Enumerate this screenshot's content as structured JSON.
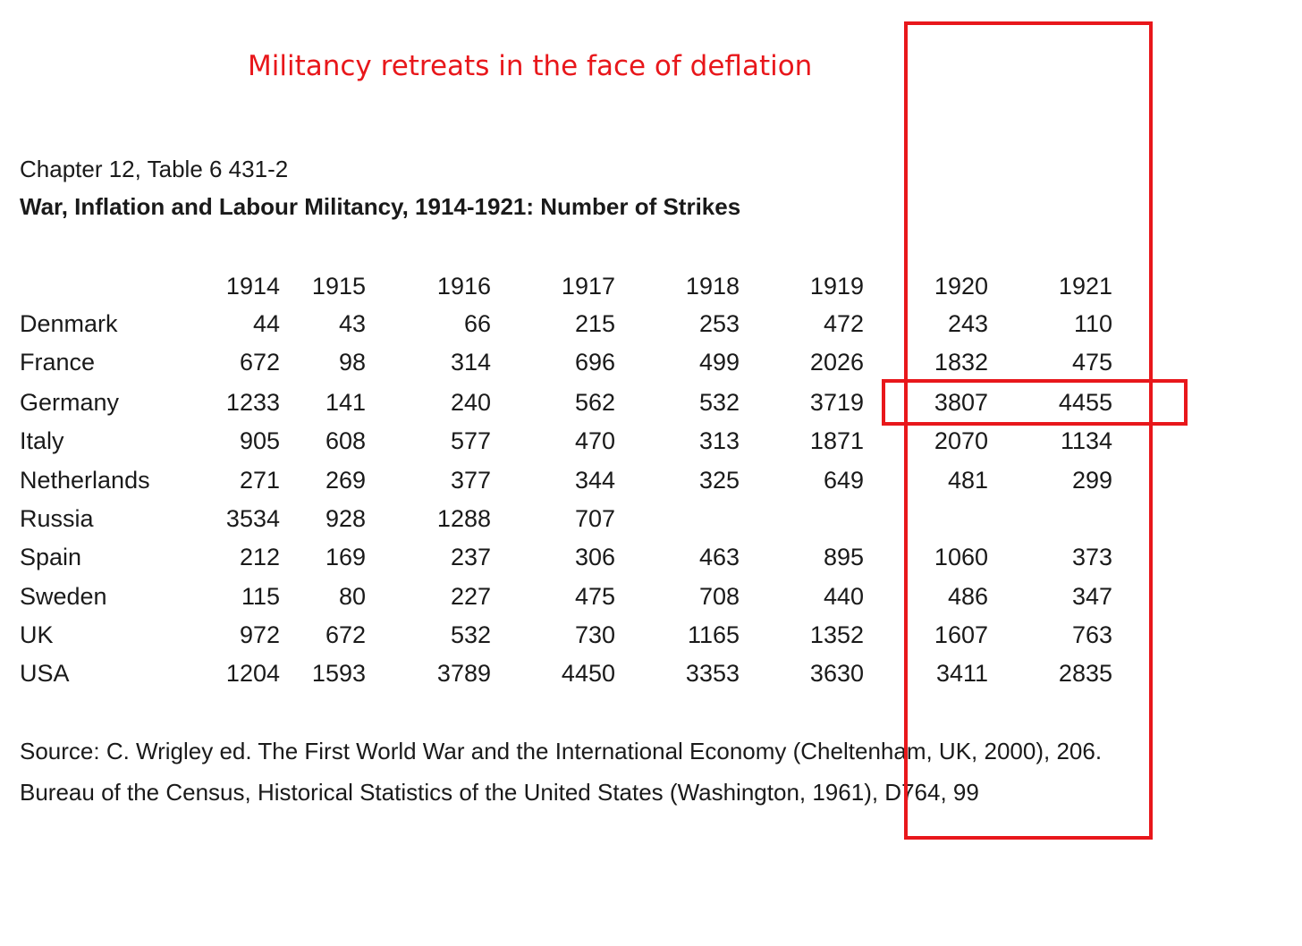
{
  "annotation": {
    "title": "Militancy retreats in the face of deflation",
    "color": "#e8171b"
  },
  "document": {
    "chapter": "Chapter 12, Table 6 431-2",
    "title": "War, Inflation and Labour Militancy, 1914-1921: Number of Strikes"
  },
  "table": {
    "years": [
      "1914",
      "1915",
      "1916",
      "1917",
      "1918",
      "1919",
      "1920",
      "1921"
    ],
    "rows": [
      {
        "country": "Denmark",
        "values": [
          "44",
          "43",
          "66",
          "215",
          "253",
          "472",
          "243",
          "110"
        ]
      },
      {
        "country": "France",
        "values": [
          "672",
          "98",
          "314",
          "696",
          "499",
          "2026",
          "1832",
          "475"
        ]
      },
      {
        "country": "Germany",
        "values": [
          "1233",
          "141",
          "240",
          "562",
          "532",
          "3719",
          "3807",
          "4455"
        ]
      },
      {
        "country": "Italy",
        "values": [
          "905",
          "608",
          "577",
          "470",
          "313",
          "1871",
          "2070",
          "1134"
        ]
      },
      {
        "country": "Netherlands",
        "values": [
          "271",
          "269",
          "377",
          "344",
          "325",
          "649",
          "481",
          "299"
        ]
      },
      {
        "country": "Russia",
        "values": [
          "3534",
          "928",
          "1288",
          "707",
          "",
          "",
          "",
          ""
        ]
      },
      {
        "country": "Spain",
        "values": [
          "212",
          "169",
          "237",
          "306",
          "463",
          "895",
          "1060",
          "373"
        ]
      },
      {
        "country": "Sweden",
        "values": [
          "115",
          "80",
          "227",
          "475",
          "708",
          "440",
          "486",
          "347"
        ]
      },
      {
        "country": "UK",
        "values": [
          "972",
          "672",
          "532",
          "730",
          "1165",
          "1352",
          "1607",
          "763"
        ]
      },
      {
        "country": "USA",
        "values": [
          "1204",
          "1593",
          "3789",
          "4450",
          "3353",
          "3630",
          "3411",
          "2835"
        ]
      }
    ]
  },
  "source": {
    "line1": "Source: C. Wrigley ed. The First World War and the International Economy (Cheltenham, UK, 2000), 206.",
    "line2": "Bureau of the Census, Historical Statistics of the United States (Washington, 1961), D764, 99"
  },
  "highlights": {
    "column": "1920-1921",
    "row": "Germany 1920-1921"
  }
}
